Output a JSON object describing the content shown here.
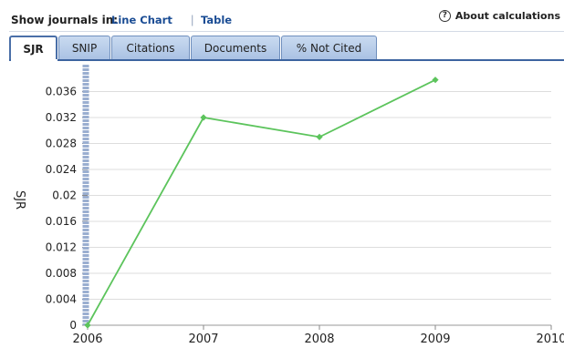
{
  "header": {
    "show_label": "Show journals in:",
    "line_chart_link": "Line Chart",
    "separator": "|",
    "table_link": "Table",
    "about_label": "About calculations",
    "about_icon": "?"
  },
  "tabs": [
    {
      "label": "SJR",
      "active": true
    },
    {
      "label": "SNIP",
      "active": false
    },
    {
      "label": "Citations",
      "active": false
    },
    {
      "label": "Documents",
      "active": false
    },
    {
      "label": "% Not Cited",
      "active": false
    }
  ],
  "colors": {
    "series": "#5cc45c",
    "grid": "#dddddd",
    "axis_bar": "#9aaed0",
    "tab_border": "#3d64a0",
    "link": "#1a4c94"
  },
  "chart_data": {
    "type": "line",
    "ylabel": "SJR",
    "xlabel": "",
    "x": [
      2006,
      2007,
      2008,
      2009
    ],
    "x_ticks": [
      "2006",
      "2007",
      "2008",
      "2009",
      "2010"
    ],
    "xlim": [
      2006,
      2010
    ],
    "ylim": [
      0,
      0.04
    ],
    "y_ticks": [
      "0",
      "0.004",
      "0.008",
      "0.012",
      "0.016",
      "0.02",
      "0.024",
      "0.028",
      "0.032",
      "0.036"
    ],
    "grid": true,
    "series": [
      {
        "values": [
          0,
          0.032,
          0.029,
          0.0378
        ],
        "color": "#5cc45c",
        "marker": "diamond"
      }
    ]
  }
}
